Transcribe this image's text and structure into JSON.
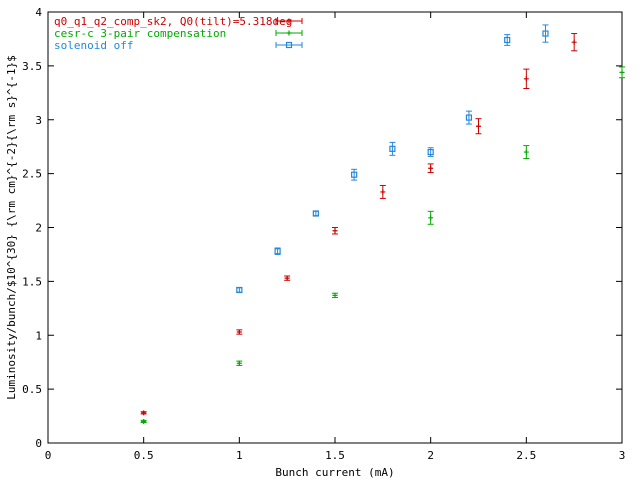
{
  "chart_data": {
    "type": "scatter",
    "xlabel": "Bunch current (mA)",
    "ylabel": "Luminosity/bunch/$10^{30} {\\rm cm}^{-2}{\\rm s}^{-1}$",
    "xlim": [
      0,
      3
    ],
    "ylim": [
      0,
      4
    ],
    "x_ticks": [
      "0",
      "0.5",
      "1",
      "1.5",
      "2",
      "2.5",
      "3"
    ],
    "y_ticks": [
      "0",
      "0.5",
      "1",
      "1.5",
      "2",
      "2.5",
      "3",
      "3.5",
      "4"
    ],
    "grid": false,
    "legend_position": "top-left",
    "series": [
      {
        "name": "q0_q1_q2_comp_sk2, Q0(tilt)=5.318deg",
        "color": "#cc0000",
        "marker": "plus",
        "points": [
          {
            "x": 0.5,
            "y": 0.28,
            "err": 0.01
          },
          {
            "x": 1.0,
            "y": 1.03,
            "err": 0.02
          },
          {
            "x": 1.25,
            "y": 1.53,
            "err": 0.02
          },
          {
            "x": 1.5,
            "y": 1.97,
            "err": 0.03
          },
          {
            "x": 1.75,
            "y": 2.33,
            "err": 0.06
          },
          {
            "x": 2.0,
            "y": 2.55,
            "err": 0.04
          },
          {
            "x": 2.25,
            "y": 2.94,
            "err": 0.07
          },
          {
            "x": 2.5,
            "y": 3.38,
            "err": 0.09
          },
          {
            "x": 2.75,
            "y": 3.72,
            "err": 0.08
          }
        ]
      },
      {
        "name": "cesr-c 3-pair compensation",
        "color": "#00aa00",
        "marker": "plus",
        "points": [
          {
            "x": 0.5,
            "y": 0.2,
            "err": 0.01
          },
          {
            "x": 1.0,
            "y": 0.74,
            "err": 0.02
          },
          {
            "x": 1.5,
            "y": 1.37,
            "err": 0.02
          },
          {
            "x": 2.0,
            "y": 2.09,
            "err": 0.06
          },
          {
            "x": 2.5,
            "y": 2.7,
            "err": 0.06
          },
          {
            "x": 3.0,
            "y": 3.44,
            "err": 0.05
          }
        ]
      },
      {
        "name": "solenoid off",
        "color": "#2288dd",
        "marker": "square",
        "points": [
          {
            "x": 1.0,
            "y": 1.42,
            "err": 0.02
          },
          {
            "x": 1.2,
            "y": 1.78,
            "err": 0.03
          },
          {
            "x": 1.4,
            "y": 2.13,
            "err": 0.02
          },
          {
            "x": 1.6,
            "y": 2.49,
            "err": 0.05
          },
          {
            "x": 1.8,
            "y": 2.73,
            "err": 0.06
          },
          {
            "x": 2.0,
            "y": 2.7,
            "err": 0.04
          },
          {
            "x": 2.2,
            "y": 3.02,
            "err": 0.06
          },
          {
            "x": 2.4,
            "y": 3.74,
            "err": 0.05
          },
          {
            "x": 2.6,
            "y": 3.8,
            "err": 0.08
          }
        ]
      }
    ]
  }
}
